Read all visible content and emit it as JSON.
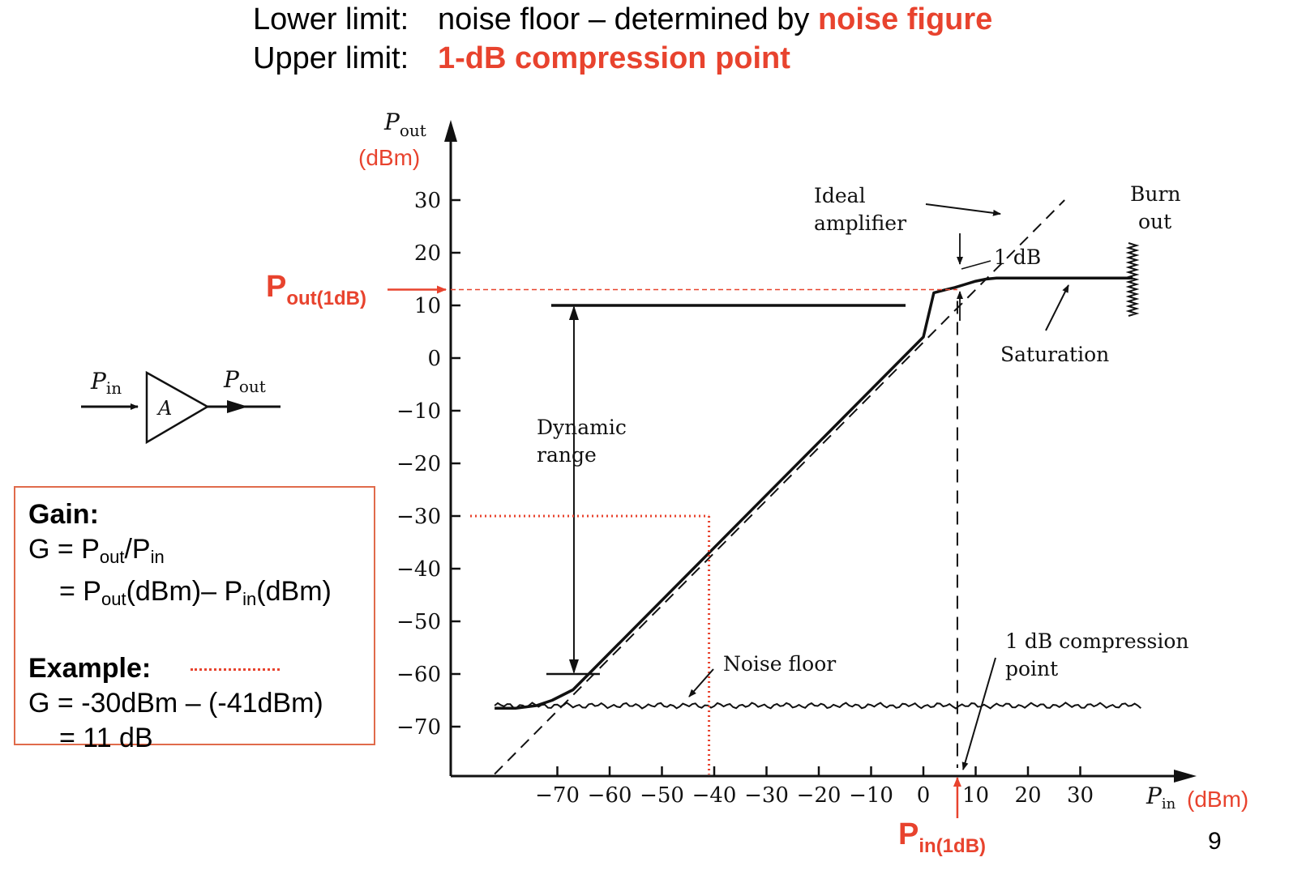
{
  "header": {
    "lower_label": "Lower limit:",
    "lower_text": "noise floor – determined by ",
    "lower_highlight": "noise figure",
    "upper_label": "Upper limit:",
    "upper_highlight": "1-dB compression point"
  },
  "chart_data": {
    "type": "line",
    "ylabel_main": "P",
    "ylabel_sub": "out",
    "ylabel_unit": "(dBm)",
    "xlabel_main": "P",
    "xlabel_sub": "in",
    "xlabel_unit": "(dBm)",
    "xticks": [
      -70,
      -60,
      -50,
      -40,
      -30,
      -20,
      -10,
      0,
      10,
      20,
      30
    ],
    "yticks": [
      30,
      20,
      10,
      0,
      -10,
      -20,
      -30,
      -40,
      -50,
      -60,
      -70
    ],
    "xlim": [
      -82,
      47
    ],
    "ylim": [
      -79,
      45
    ],
    "series": [
      {
        "x": [
          -82,
          -78,
          -74,
          -71,
          -67,
          -64,
          0,
          2,
          4,
          6,
          8,
          10,
          12,
          14,
          40
        ],
        "y": [
          -66.5,
          -66.5,
          -66,
          -65,
          -63,
          -60,
          4,
          12.4,
          12.9,
          13.4,
          14,
          14.6,
          15,
          15.2,
          15.2
        ]
      }
    ],
    "ideal_line": {
      "x": [
        -82,
        27
      ],
      "y": [
        -79,
        30
      ]
    },
    "noise_floor": {
      "y": -66,
      "x_range": [
        -82,
        42
      ]
    },
    "compression_point": {
      "pin": 6.5,
      "pout": 13
    },
    "dynamic_range": {
      "top": 10,
      "bottom": -60,
      "x": -69,
      "top_end": 0
    },
    "example": {
      "pin": -41,
      "pout": -30
    },
    "annotations": {
      "ideal": [
        "Ideal",
        "amplifier"
      ],
      "burn": [
        "Burn",
        "out"
      ],
      "one_db": "1 dB",
      "saturation": "Saturation",
      "dynamic": [
        "Dynamic",
        "range"
      ],
      "noise": "Noise floor",
      "compression": [
        "1 dB compression",
        "point"
      ],
      "pout1db_main": "P",
      "pout1db_sub": "out(1dB)",
      "pin1db_main": "P",
      "pin1db_sub": "in(1dB)"
    }
  },
  "amp": {
    "pin_main": "P",
    "pin_sub": "in",
    "pout_main": "P",
    "pout_sub": "out",
    "block": "A"
  },
  "gainbox": {
    "title": "Gain:",
    "line1_a": "G = P",
    "line1_sub1": "out",
    "line1_b": "/P",
    "line1_sub2": "in",
    "line2_a": "= P",
    "line2_sub1": "out",
    "line2_b": "(dBm)– P",
    "line2_sub2": "in",
    "line2_c": "(dBm)",
    "example_title": "Example:",
    "example_line1": "G = -30dBm – (-41dBm)",
    "example_line2": "= 11 dB"
  },
  "page_number": "9",
  "colors": {
    "accent": "#e8432e",
    "ink": "#111111"
  }
}
